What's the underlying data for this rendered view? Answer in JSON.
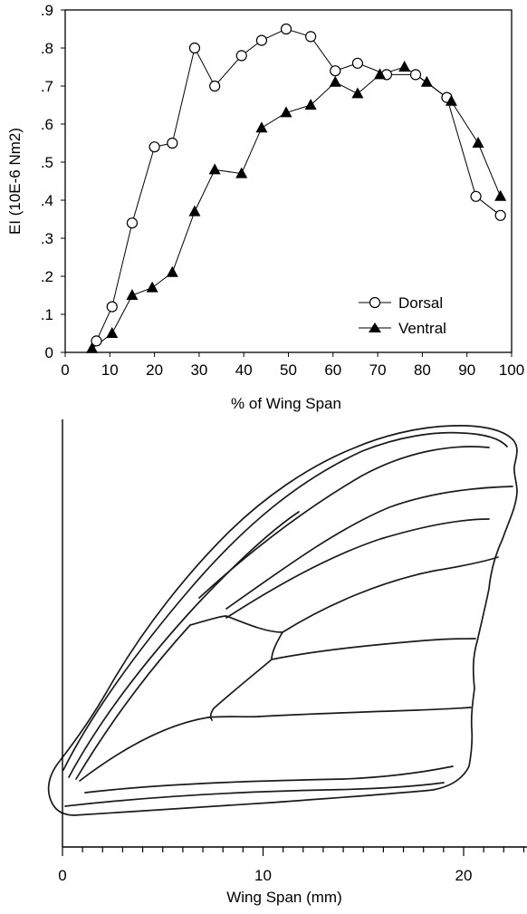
{
  "chart_data": [
    {
      "type": "line",
      "ylabel": "EI (10E-6 Nm2)",
      "xlabel": "% of Wing Span",
      "xlim": [
        0,
        100
      ],
      "ylim": [
        0,
        0.9
      ],
      "x_ticks": [
        0,
        10,
        20,
        30,
        40,
        50,
        60,
        70,
        80,
        90,
        100
      ],
      "x_tick_labels": [
        "0",
        "10",
        "20",
        "30",
        "40",
        "50",
        "60",
        "70",
        "80",
        "90",
        "100"
      ],
      "y_ticks": [
        0,
        0.1,
        0.2,
        0.3,
        0.4,
        0.5,
        0.6,
        0.7,
        0.8,
        0.9
      ],
      "y_tick_labels": [
        "0",
        ".1",
        ".2",
        ".3",
        ".4",
        ".5",
        ".6",
        ".7",
        ".8",
        ".9"
      ],
      "grid": false,
      "legend_position": "bottom-right",
      "series": [
        {
          "name": "Dorsal",
          "marker": "open-circle",
          "x": [
            7,
            10.5,
            15,
            20,
            24,
            29,
            33.5,
            39.5,
            44,
            49.5,
            55,
            60.5,
            65.5,
            72,
            78.5,
            85.5,
            92,
            97.5
          ],
          "y": [
            0.03,
            0.12,
            0.34,
            0.54,
            0.55,
            0.8,
            0.7,
            0.78,
            0.82,
            0.85,
            0.83,
            0.74,
            0.76,
            0.73,
            0.73,
            0.67,
            0.41,
            0.36
          ]
        },
        {
          "name": "Ventral",
          "marker": "filled-triangle",
          "x": [
            6,
            10.5,
            15,
            19.5,
            24,
            29,
            33.5,
            39.5,
            44,
            49.5,
            55,
            60.5,
            65.5,
            70.5,
            76,
            81,
            86.5,
            92.5,
            97.5
          ],
          "y": [
            0.01,
            0.05,
            0.15,
            0.17,
            0.21,
            0.37,
            0.48,
            0.47,
            0.59,
            0.63,
            0.65,
            0.71,
            0.68,
            0.73,
            0.75,
            0.71,
            0.66,
            0.55,
            0.41
          ]
        }
      ]
    },
    {
      "type": "diagram",
      "xlabel": "Wing Span (mm)",
      "xlim": [
        0,
        24
      ],
      "x_ticks": [
        0,
        10,
        20
      ],
      "x_tick_labels": [
        "0",
        "10",
        "20"
      ],
      "minor_tick_step": 1
    }
  ]
}
